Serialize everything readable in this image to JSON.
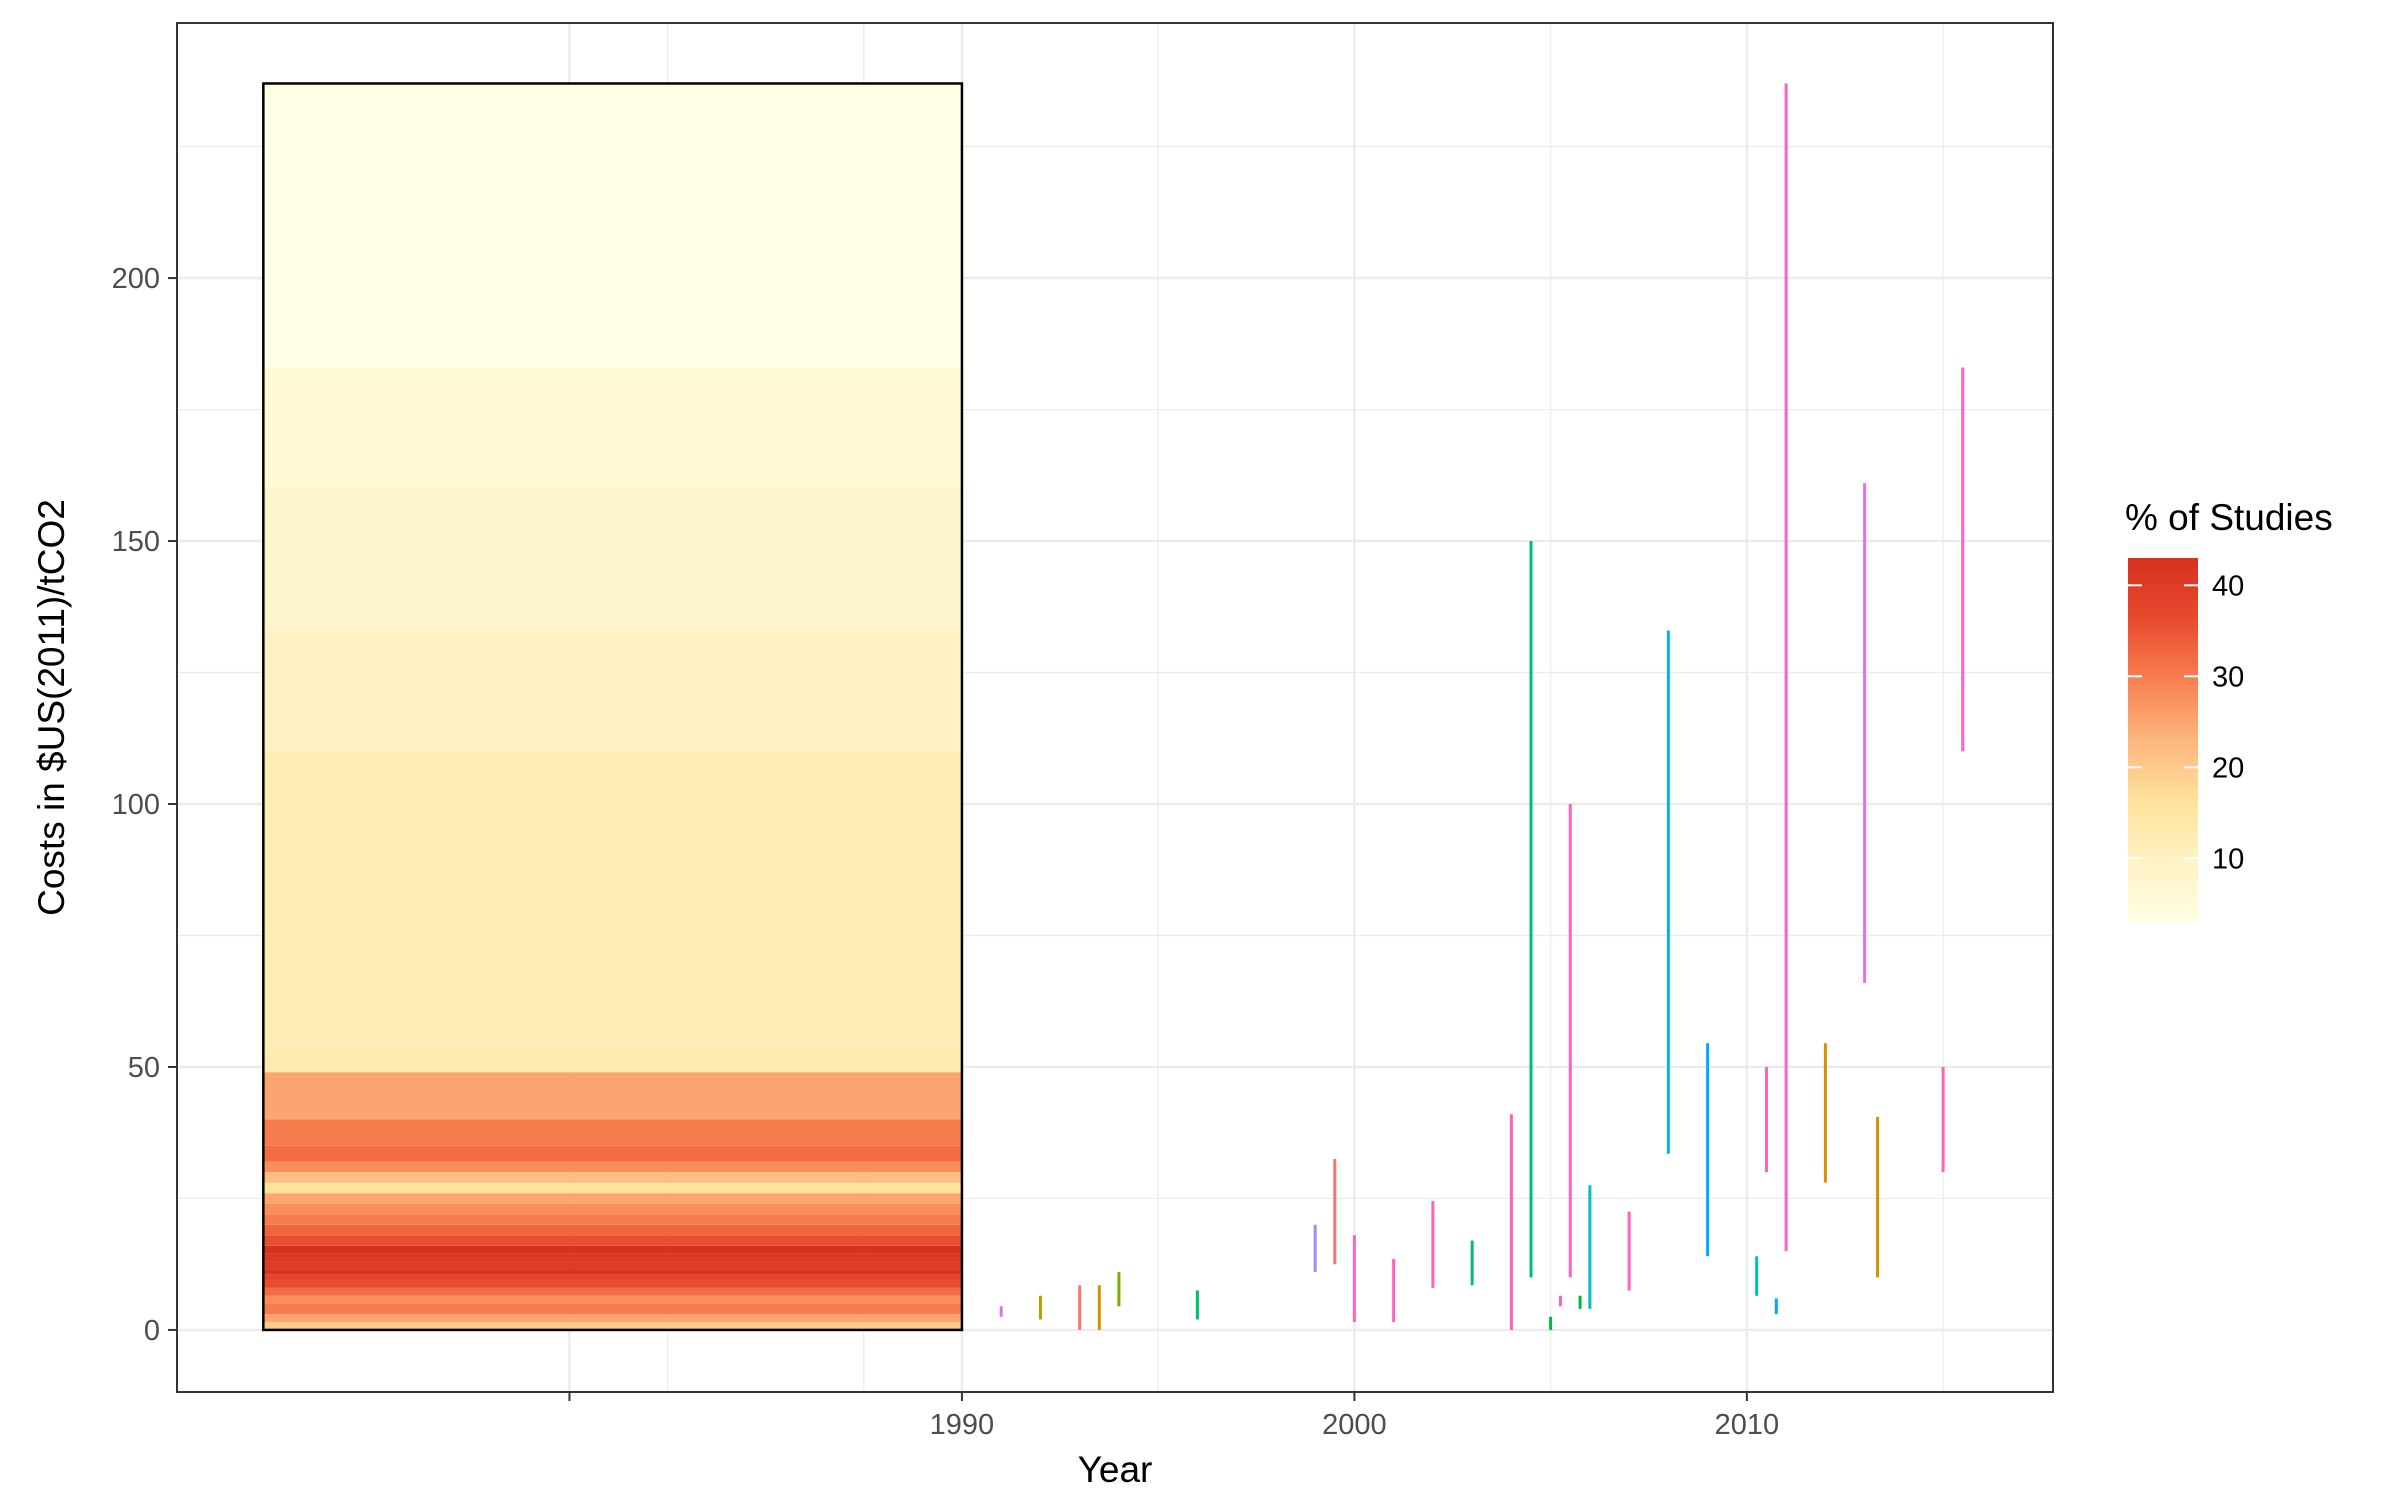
{
  "chart_data": {
    "type": "range-segments",
    "title": "",
    "xlabel": "Year",
    "ylabel": "Costs in $US(2011)/tCO2",
    "xlim": [
      1970,
      2017.8
    ],
    "ylim": [
      -11.8,
      248.5
    ],
    "x_ticks": [
      1990,
      2000,
      2010
    ],
    "x_tick_labels": [
      "1990",
      "2000",
      "2010"
    ],
    "x_minor_breaks": [
      1982.5,
      1987.5,
      1995,
      2005,
      2015
    ],
    "y_ticks": [
      0,
      50,
      100,
      150,
      200
    ],
    "y_tick_labels": [
      "0",
      "50",
      "100",
      "150",
      "200"
    ],
    "grid": true,
    "summary_box": {
      "x_range": [
        1972.2,
        1990
      ],
      "y_range": [
        0,
        237
      ],
      "band_edges": [
        0,
        1.5,
        3,
        5,
        6.5,
        8,
        9.5,
        10.5,
        11.5,
        13,
        14.5,
        16,
        18,
        20,
        22,
        24,
        26,
        28,
        30,
        32,
        35,
        40,
        49,
        54,
        65,
        100,
        110,
        133,
        160,
        183,
        237
      ],
      "band_values": [
        20,
        25,
        30,
        28,
        32,
        36,
        38,
        42,
        40,
        41,
        43,
        36,
        33,
        30,
        28,
        25,
        16,
        22,
        28,
        32,
        30,
        25,
        13,
        12,
        12,
        12,
        10,
        8,
        6,
        3
      ]
    },
    "segments": [
      {
        "x": 1991.0,
        "y": [
          2.5,
          4.5
        ],
        "color": "#E76BF3"
      },
      {
        "x": 1992.0,
        "y": [
          2,
          6.5
        ],
        "color": "#B79F00"
      },
      {
        "x": 1993.0,
        "y": [
          0,
          8.5
        ],
        "color": "#F8766D"
      },
      {
        "x": 1993.5,
        "y": [
          0,
          8.5
        ],
        "color": "#D89000"
      },
      {
        "x": 1994.0,
        "y": [
          4.5,
          11
        ],
        "color": "#7CAE00"
      },
      {
        "x": 1996.0,
        "y": [
          2,
          7.5
        ],
        "color": "#00BE70"
      },
      {
        "x": 1999.0,
        "y": [
          11,
          20
        ],
        "color": "#9590FF"
      },
      {
        "x": 1999.5,
        "y": [
          12.5,
          32.5
        ],
        "color": "#F8766D"
      },
      {
        "x": 2000.0,
        "y": [
          1.5,
          18
        ],
        "color": "#FF62BC"
      },
      {
        "x": 2001.0,
        "y": [
          1.5,
          13.5
        ],
        "color": "#FF62BC"
      },
      {
        "x": 2002.0,
        "y": [
          8,
          24.5
        ],
        "color": "#FF62BC"
      },
      {
        "x": 2003.0,
        "y": [
          8.5,
          17
        ],
        "color": "#00BE70"
      },
      {
        "x": 2004.0,
        "y": [
          0,
          41
        ],
        "color": "#FF62BC"
      },
      {
        "x": 2004.5,
        "y": [
          10,
          150
        ],
        "color": "#00BE70"
      },
      {
        "x": 2005.0,
        "y": [
          0,
          2.5
        ],
        "color": "#00BA38"
      },
      {
        "x": 2005.25,
        "y": [
          4.5,
          6.5
        ],
        "color": "#FF62BC"
      },
      {
        "x": 2005.5,
        "y": [
          10,
          100
        ],
        "color": "#FF62BC"
      },
      {
        "x": 2005.75,
        "y": [
          4,
          6.5
        ],
        "color": "#00BA38"
      },
      {
        "x": 2006.0,
        "y": [
          4,
          27.5
        ],
        "color": "#00BFC4"
      },
      {
        "x": 2007.0,
        "y": [
          7.5,
          22.5
        ],
        "color": "#FF62BC"
      },
      {
        "x": 2008.0,
        "y": [
          33.5,
          133
        ],
        "color": "#00B4EF"
      },
      {
        "x": 2009.0,
        "y": [
          14,
          54.5
        ],
        "color": "#00A9FF"
      },
      {
        "x": 2010.25,
        "y": [
          6.5,
          14
        ],
        "color": "#00BFA5"
      },
      {
        "x": 2010.5,
        "y": [
          30,
          50
        ],
        "color": "#FF61C3"
      },
      {
        "x": 2010.75,
        "y": [
          3,
          6
        ],
        "color": "#00A9FF"
      },
      {
        "x": 2011.0,
        "y": [
          15,
          237
        ],
        "color": "#FF62BC"
      },
      {
        "x": 2012.0,
        "y": [
          28,
          54.5
        ],
        "color": "#D89000"
      },
      {
        "x": 2013.0,
        "y": [
          66,
          161
        ],
        "color": "#E76BF3"
      },
      {
        "x": 2013.33,
        "y": [
          10,
          40.5
        ],
        "color": "#D89000"
      },
      {
        "x": 2015.0,
        "y": [
          30,
          50
        ],
        "color": "#FF62BC"
      },
      {
        "x": 2015.5,
        "y": [
          110,
          183
        ],
        "color": "#FF62BC"
      }
    ],
    "legend": {
      "title": "% of Studies",
      "position": "right",
      "breaks": [
        10,
        20,
        30,
        40
      ],
      "labels": [
        "10",
        "20",
        "30",
        "40"
      ],
      "range": [
        3,
        43
      ],
      "scale_colors": [
        "#FFFFE5",
        "#FFF2C4",
        "#FFE29B",
        "#FDB57E",
        "#F77F50",
        "#E84A2E",
        "#D7301F"
      ]
    }
  }
}
